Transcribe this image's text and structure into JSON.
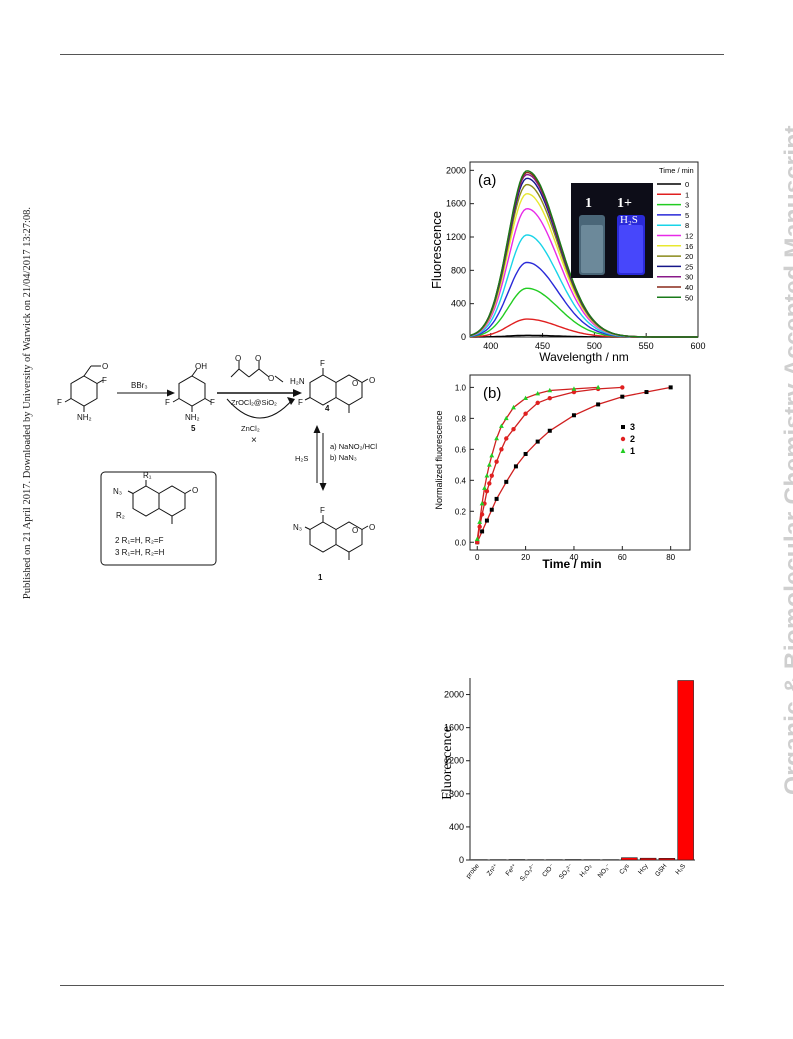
{
  "page": {
    "side_note": "Published on 21 April 2017. Downloaded by University of Warwick on 21/04/2017 13:27:08.",
    "watermark": "Organic & Biomolecular Chemistry Accepted Manuscript"
  },
  "scheme": {
    "reagent_bbr3": "BBr₃",
    "cat_zr": "ZrOCl₂@SiO₂",
    "cat_zn": "ZnCl₂",
    "cross": "×",
    "step_a": "a) NaNO₂/HCl",
    "step_b": "b) NaN₃",
    "h2s": "H₂S",
    "label_5": "5",
    "label_4": "4",
    "label_1": "1",
    "box_line1": "2 R₁=H, R₂=F",
    "box_line2": "3 R₁=H, R₂=H",
    "atoms": {
      "F": "F",
      "O": "O",
      "OH": "OH",
      "NH2": "NH₂",
      "H2N": "H₂N",
      "N3": "N₃",
      "R1": "R₁",
      "R2": "R₂"
    }
  },
  "inset": {
    "left": "1",
    "right_top": "1+",
    "right_bottom": "H₂S"
  },
  "chart_data": [
    {
      "panel": "(a)",
      "type": "line",
      "xlabel": "Wavelength / nm",
      "ylabel": "Fluorescence",
      "xlim": [
        380,
        600
      ],
      "ylim": [
        0,
        2100
      ],
      "xticks": [
        400,
        450,
        500,
        550,
        600
      ],
      "yticks": [
        0,
        400,
        800,
        1200,
        1600,
        2000
      ],
      "legend_title": "Time / min",
      "legend_position": "top-right",
      "peak_wavelength": 435,
      "series": [
        {
          "name": "0",
          "color": "#000000",
          "peak": 20
        },
        {
          "name": "1",
          "color": "#e02020",
          "peak": 215
        },
        {
          "name": "3",
          "color": "#22cc22",
          "peak": 585
        },
        {
          "name": "5",
          "color": "#2a2ad8",
          "peak": 895
        },
        {
          "name": "8",
          "color": "#19d4e8",
          "peak": 1225
        },
        {
          "name": "12",
          "color": "#e82ae8",
          "peak": 1540
        },
        {
          "name": "16",
          "color": "#e8e830",
          "peak": 1720
        },
        {
          "name": "20",
          "color": "#8a8a1a",
          "peak": 1830
        },
        {
          "name": "25",
          "color": "#16168a",
          "peak": 1905
        },
        {
          "name": "30",
          "color": "#8a1a8a",
          "peak": 1950
        },
        {
          "name": "40",
          "color": "#8a2a1a",
          "peak": 1975
        },
        {
          "name": "50",
          "color": "#1a7a1a",
          "peak": 1995
        }
      ]
    },
    {
      "panel": "(b)",
      "type": "scatter",
      "xlabel": "Time / min",
      "ylabel": "Normalized fluorescence",
      "xlim": [
        -3,
        88
      ],
      "ylim": [
        -0.05,
        1.08
      ],
      "xticks": [
        0,
        20,
        40,
        60,
        80
      ],
      "yticks": [
        0.0,
        0.2,
        0.4,
        0.6,
        0.8,
        1.0
      ],
      "legend_position": "right",
      "series": [
        {
          "name": "3",
          "color": "#000000",
          "marker": "square",
          "x": [
            0,
            2,
            4,
            6,
            8,
            12,
            16,
            20,
            25,
            30,
            40,
            50,
            60,
            70,
            80
          ],
          "y": [
            0.0,
            0.07,
            0.14,
            0.21,
            0.28,
            0.39,
            0.49,
            0.57,
            0.65,
            0.72,
            0.82,
            0.89,
            0.94,
            0.97,
            1.0
          ]
        },
        {
          "name": "2",
          "color": "#e02020",
          "marker": "circle",
          "x": [
            0,
            1,
            2,
            3,
            4,
            5,
            6,
            8,
            10,
            12,
            15,
            20,
            25,
            30,
            40,
            50,
            60
          ],
          "y": [
            0.0,
            0.1,
            0.18,
            0.25,
            0.33,
            0.38,
            0.43,
            0.52,
            0.6,
            0.67,
            0.73,
            0.83,
            0.9,
            0.93,
            0.97,
            0.99,
            1.0
          ]
        },
        {
          "name": "1",
          "color": "#22cc22",
          "marker": "triangle",
          "x": [
            0,
            1,
            2,
            3,
            4,
            5,
            6,
            8,
            10,
            12,
            15,
            20,
            25,
            30,
            40,
            50
          ],
          "y": [
            0.02,
            0.13,
            0.25,
            0.35,
            0.43,
            0.5,
            0.56,
            0.67,
            0.75,
            0.8,
            0.87,
            0.93,
            0.96,
            0.98,
            0.99,
            1.0
          ]
        }
      ]
    },
    {
      "panel": "",
      "type": "bar",
      "ylabel": "Fluorescence",
      "ylim": [
        0,
        2200
      ],
      "yticks": [
        0,
        400,
        800,
        1200,
        1600,
        2000
      ],
      "bar_color": "#ff0000",
      "categories": [
        "probe",
        "Zn²⁺",
        "Fe²⁺",
        "S₂O₃²⁻",
        "ClO⁻",
        "SO₃²⁻",
        "H₂O₂",
        "NO₃⁻",
        "Cys",
        "Hcy",
        "GSH",
        "H₂S"
      ],
      "values": [
        5,
        5,
        6,
        5,
        5,
        6,
        5,
        5,
        28,
        22,
        20,
        2170
      ]
    }
  ]
}
